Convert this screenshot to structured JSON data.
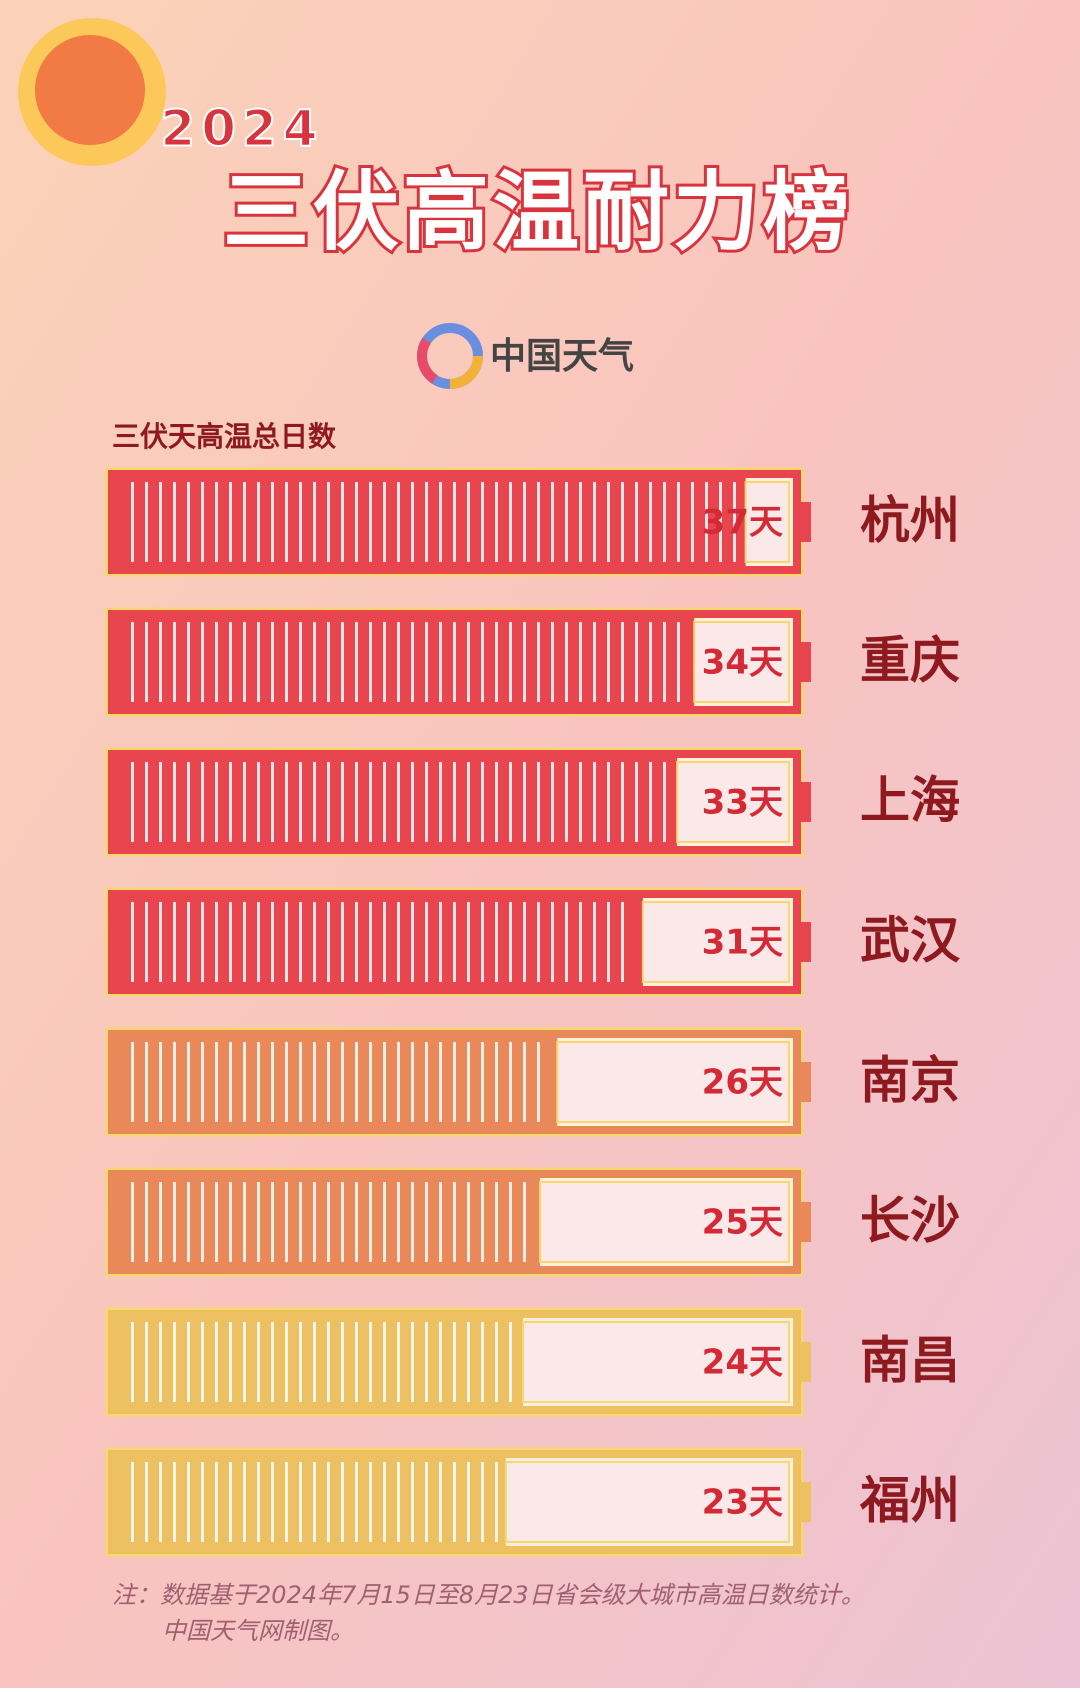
{
  "chart_data": {
    "type": "bar",
    "orientation": "horizontal",
    "title_year": "2024",
    "title": "三伏高温耐力榜",
    "source": "中国天气",
    "value_axis_label": "三伏天高温总日数",
    "categories": [
      "杭州",
      "重庆",
      "上海",
      "武汉",
      "南京",
      "长沙",
      "南昌",
      "福州"
    ],
    "values": [
      37,
      34,
      33,
      31,
      26,
      25,
      24,
      23
    ],
    "value_labels": [
      "37天",
      "34天",
      "33天",
      "31天",
      "26天",
      "25天",
      "24天",
      "23天"
    ],
    "colors": [
      "#e8454f",
      "#e8454f",
      "#e8454f",
      "#e8454f",
      "#e98858",
      "#e98858",
      "#edc062",
      "#edc062"
    ],
    "xlim": [
      0,
      40
    ],
    "note": [
      "注：数据基于2024年7月15日至8月23日省会级大城市高温日数统计。",
      "中国天气网制图。"
    ]
  }
}
